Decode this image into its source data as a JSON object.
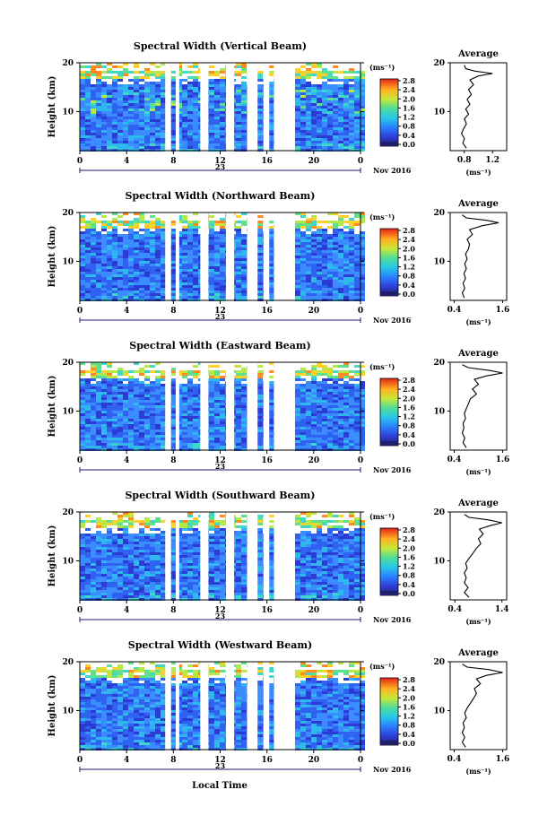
{
  "page": {
    "x_axis_label": "Local Time",
    "date_label": "Nov 2016",
    "day_label": "23"
  },
  "chart_data": [
    {
      "type": "heatmap",
      "title": "Spectral Width (Vertical Beam)",
      "ylabel": "Height (km)",
      "xlabel": "Local Time",
      "xlim": [
        0,
        24
      ],
      "ylim": [
        2,
        20
      ],
      "x_ticks": [
        "0",
        "4",
        "8",
        "12",
        "16",
        "20",
        "0"
      ],
      "y_ticks": [
        "10",
        "20"
      ],
      "colorbar": {
        "unit": "(ms⁻¹)",
        "ticks": [
          "0.0",
          "0.4",
          "0.8",
          "1.2",
          "1.6",
          "2.0",
          "2.4",
          "2.8"
        ]
      },
      "data_gaps_hours": [
        [
          7.3,
          7.8
        ],
        [
          8.2,
          8.5
        ],
        [
          10.3,
          11.0
        ],
        [
          12.5,
          13.2
        ],
        [
          14.3,
          15.2
        ],
        [
          15.7,
          16.2
        ],
        [
          16.6,
          18.4
        ]
      ],
      "average_profile": {
        "title": "Average",
        "xlabel": "(ms⁻¹)",
        "xlim": [
          0.6,
          1.4
        ],
        "x_ticks": [
          "0.8",
          "1.2"
        ],
        "y_ticks": [
          "10",
          "20"
        ],
        "points": [
          [
            0.83,
            2.5
          ],
          [
            0.78,
            3.5
          ],
          [
            0.8,
            4.5
          ],
          [
            0.76,
            5.5
          ],
          [
            0.79,
            6.5
          ],
          [
            0.83,
            7.5
          ],
          [
            0.8,
            8.5
          ],
          [
            0.86,
            9.5
          ],
          [
            0.82,
            10.5
          ],
          [
            0.88,
            11.5
          ],
          [
            0.84,
            12.5
          ],
          [
            0.9,
            13.5
          ],
          [
            0.86,
            14.5
          ],
          [
            0.93,
            15.5
          ],
          [
            0.88,
            16.5
          ],
          [
            1.0,
            17.3
          ],
          [
            1.2,
            17.8
          ],
          [
            0.95,
            18.3
          ],
          [
            0.82,
            18.8
          ],
          [
            0.8,
            19.5
          ]
        ]
      }
    },
    {
      "type": "heatmap",
      "title": "Spectral Width (Northward Beam)",
      "ylabel": "Height (km)",
      "xlabel": "Local Time",
      "xlim": [
        0,
        24
      ],
      "ylim": [
        2,
        20
      ],
      "x_ticks": [
        "0",
        "4",
        "8",
        "12",
        "16",
        "20",
        "0"
      ],
      "y_ticks": [
        "10",
        "20"
      ],
      "colorbar": {
        "unit": "(ms⁻¹)",
        "ticks": [
          "0.0",
          "0.4",
          "0.8",
          "1.2",
          "1.6",
          "2.0",
          "2.4",
          "2.8"
        ]
      },
      "data_gaps_hours": [
        [
          7.3,
          7.8
        ],
        [
          8.2,
          8.5
        ],
        [
          10.3,
          11.0
        ],
        [
          12.5,
          13.2
        ],
        [
          14.3,
          15.2
        ],
        [
          15.7,
          16.2
        ],
        [
          16.6,
          18.4
        ]
      ],
      "average_profile": {
        "title": "Average",
        "xlabel": "(ms⁻¹)",
        "xlim": [
          0.3,
          1.7
        ],
        "x_ticks": [
          "0.4",
          "1.6"
        ],
        "y_ticks": [
          "10",
          "20"
        ],
        "points": [
          [
            0.65,
            2.5
          ],
          [
            0.6,
            3.5
          ],
          [
            0.66,
            4.5
          ],
          [
            0.62,
            5.5
          ],
          [
            0.68,
            6.5
          ],
          [
            0.64,
            7.5
          ],
          [
            0.7,
            8.5
          ],
          [
            0.66,
            9.5
          ],
          [
            0.72,
            10.5
          ],
          [
            0.68,
            11.5
          ],
          [
            0.75,
            12.5
          ],
          [
            0.78,
            13.5
          ],
          [
            0.72,
            14.5
          ],
          [
            0.85,
            15.5
          ],
          [
            0.78,
            16.5
          ],
          [
            1.1,
            17.3
          ],
          [
            1.5,
            17.9
          ],
          [
            1.2,
            18.4
          ],
          [
            0.7,
            18.9
          ],
          [
            0.6,
            19.5
          ]
        ]
      }
    },
    {
      "type": "heatmap",
      "title": "Spectral Width (Eastward Beam)",
      "ylabel": "Height (km)",
      "xlabel": "Local Time",
      "xlim": [
        0,
        24
      ],
      "ylim": [
        2,
        20
      ],
      "x_ticks": [
        "0",
        "4",
        "8",
        "12",
        "16",
        "20",
        "0"
      ],
      "y_ticks": [
        "10",
        "20"
      ],
      "colorbar": {
        "unit": "(ms⁻¹)",
        "ticks": [
          "0.0",
          "0.4",
          "0.8",
          "1.2",
          "1.6",
          "2.0",
          "2.4",
          "2.8"
        ]
      },
      "data_gaps_hours": [
        [
          7.3,
          7.8
        ],
        [
          8.2,
          8.5
        ],
        [
          10.3,
          11.0
        ],
        [
          12.5,
          13.2
        ],
        [
          14.3,
          15.2
        ],
        [
          15.7,
          16.2
        ],
        [
          16.6,
          18.4
        ]
      ],
      "average_profile": {
        "title": "Average",
        "xlabel": "(ms⁻¹)",
        "xlim": [
          0.3,
          1.7
        ],
        "x_ticks": [
          "0.4",
          "1.6"
        ],
        "y_ticks": [
          "10",
          "20"
        ],
        "points": [
          [
            0.7,
            2.5
          ],
          [
            0.62,
            3.5
          ],
          [
            0.66,
            4.5
          ],
          [
            0.6,
            5.5
          ],
          [
            0.64,
            6.5
          ],
          [
            0.62,
            7.5
          ],
          [
            0.68,
            8.5
          ],
          [
            0.65,
            9.5
          ],
          [
            0.7,
            10.5
          ],
          [
            0.75,
            11.5
          ],
          [
            0.8,
            12.5
          ],
          [
            0.95,
            13.5
          ],
          [
            0.85,
            14.5
          ],
          [
            1.0,
            15.5
          ],
          [
            0.9,
            16.5
          ],
          [
            1.2,
            17.2
          ],
          [
            1.6,
            17.8
          ],
          [
            1.3,
            18.3
          ],
          [
            0.75,
            18.9
          ],
          [
            0.6,
            19.5
          ]
        ]
      }
    },
    {
      "type": "heatmap",
      "title": "Spectral Width (Southward Beam)",
      "ylabel": "Height (km)",
      "xlabel": "Local Time",
      "xlim": [
        0,
        24
      ],
      "ylim": [
        2,
        20
      ],
      "x_ticks": [
        "0",
        "4",
        "8",
        "12",
        "16",
        "20",
        "0"
      ],
      "y_ticks": [
        "10",
        "20"
      ],
      "colorbar": {
        "unit": "(ms⁻¹)",
        "ticks": [
          "0.0",
          "0.4",
          "0.8",
          "1.2",
          "1.6",
          "2.0",
          "2.4",
          "2.8"
        ]
      },
      "data_gaps_hours": [
        [
          7.3,
          7.8
        ],
        [
          8.2,
          8.5
        ],
        [
          10.3,
          11.0
        ],
        [
          12.5,
          13.2
        ],
        [
          14.3,
          15.2
        ],
        [
          15.7,
          16.2
        ],
        [
          16.6,
          18.4
        ]
      ],
      "average_profile": {
        "title": "Average",
        "xlabel": "(ms⁻¹)",
        "xlim": [
          0.3,
          1.5
        ],
        "x_ticks": [
          "0.4",
          "1.4"
        ],
        "y_ticks": [
          "10",
          "20"
        ],
        "points": [
          [
            0.7,
            2.5
          ],
          [
            0.6,
            3.5
          ],
          [
            0.68,
            4.5
          ],
          [
            0.6,
            5.5
          ],
          [
            0.64,
            6.5
          ],
          [
            0.6,
            7.5
          ],
          [
            0.66,
            8.5
          ],
          [
            0.63,
            9.5
          ],
          [
            0.7,
            10.5
          ],
          [
            0.78,
            11.5
          ],
          [
            0.85,
            12.5
          ],
          [
            0.95,
            13.5
          ],
          [
            0.9,
            14.5
          ],
          [
            1.0,
            15.5
          ],
          [
            0.92,
            16.5
          ],
          [
            1.15,
            17.2
          ],
          [
            1.4,
            17.8
          ],
          [
            1.1,
            18.4
          ],
          [
            0.7,
            18.9
          ],
          [
            0.6,
            19.5
          ]
        ]
      }
    },
    {
      "type": "heatmap",
      "title": "Spectral Width (Westward Beam)",
      "ylabel": "Height (km)",
      "xlabel": "Local Time",
      "xlim": [
        0,
        24
      ],
      "ylim": [
        2,
        20
      ],
      "x_ticks": [
        "0",
        "4",
        "8",
        "12",
        "16",
        "20",
        "0"
      ],
      "y_ticks": [
        "10",
        "20"
      ],
      "colorbar": {
        "unit": "(ms⁻¹)",
        "ticks": [
          "0.0",
          "0.4",
          "0.8",
          "1.2",
          "1.6",
          "2.0",
          "2.4",
          "2.8"
        ]
      },
      "data_gaps_hours": [
        [
          7.3,
          7.8
        ],
        [
          8.2,
          8.5
        ],
        [
          10.3,
          11.0
        ],
        [
          12.5,
          13.2
        ],
        [
          14.3,
          15.2
        ],
        [
          15.7,
          16.2
        ],
        [
          16.6,
          18.4
        ]
      ],
      "average_profile": {
        "title": "Average",
        "xlabel": "(ms⁻¹)",
        "xlim": [
          0.3,
          1.7
        ],
        "x_ticks": [
          "0.4",
          "1.6"
        ],
        "y_ticks": [
          "10",
          "20"
        ],
        "points": [
          [
            0.68,
            2.5
          ],
          [
            0.6,
            3.5
          ],
          [
            0.66,
            4.5
          ],
          [
            0.6,
            5.5
          ],
          [
            0.65,
            6.5
          ],
          [
            0.62,
            7.5
          ],
          [
            0.7,
            8.5
          ],
          [
            0.66,
            9.5
          ],
          [
            0.72,
            10.5
          ],
          [
            0.8,
            11.5
          ],
          [
            0.88,
            12.5
          ],
          [
            0.95,
            13.5
          ],
          [
            0.9,
            14.5
          ],
          [
            1.05,
            15.5
          ],
          [
            0.95,
            16.5
          ],
          [
            1.2,
            17.2
          ],
          [
            1.6,
            17.8
          ],
          [
            1.25,
            18.4
          ],
          [
            0.72,
            18.9
          ],
          [
            0.6,
            19.5
          ]
        ]
      }
    }
  ]
}
